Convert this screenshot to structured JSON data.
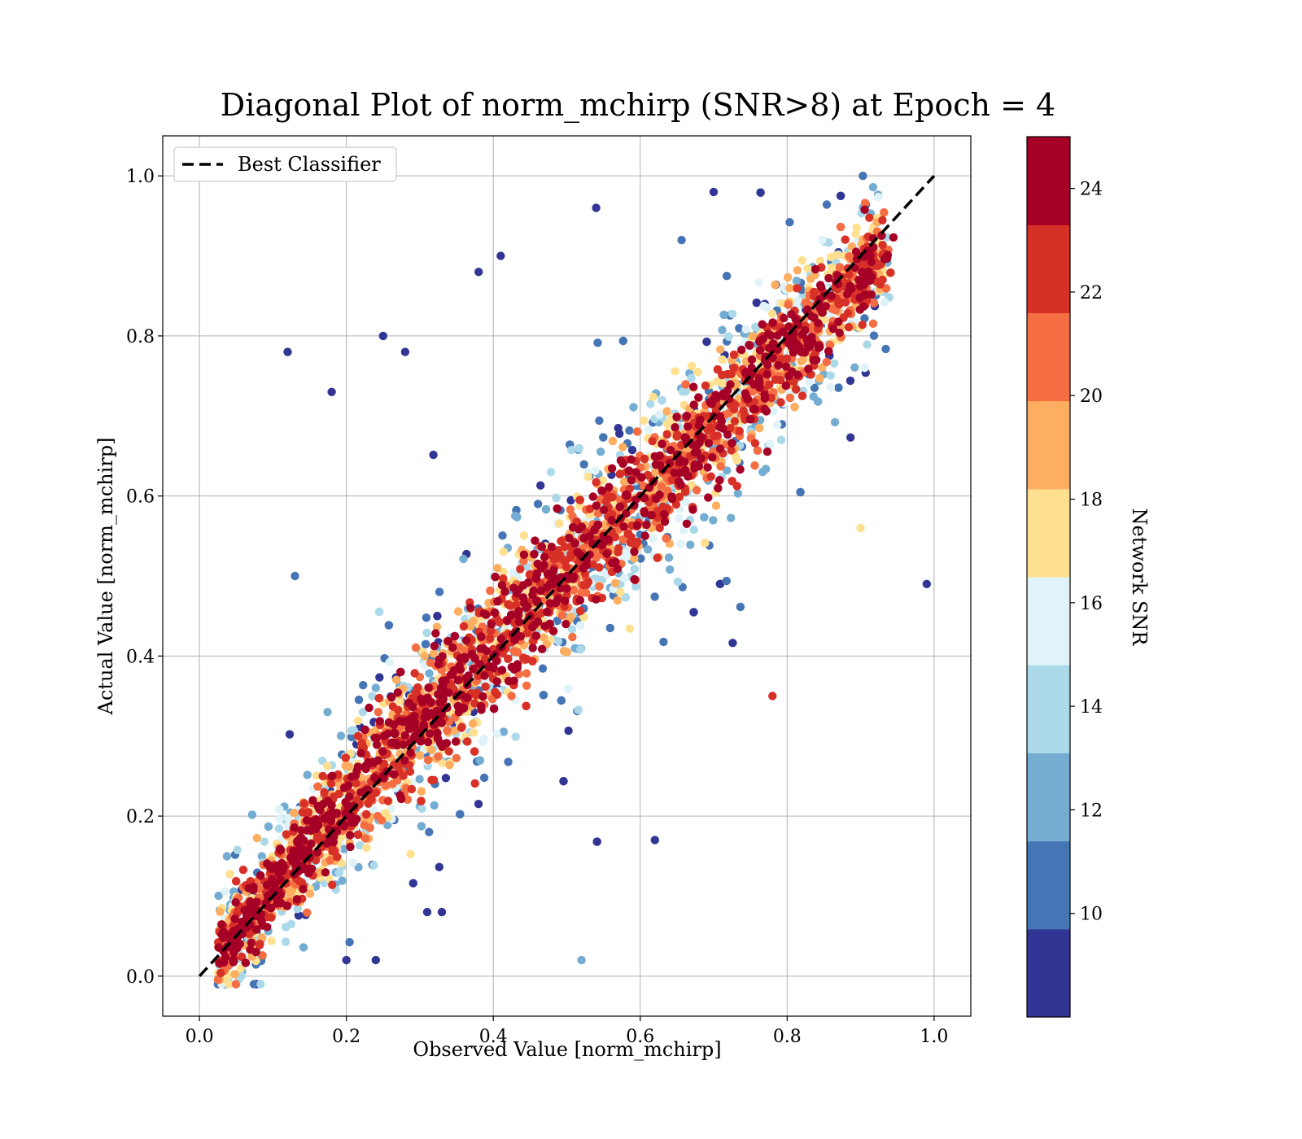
{
  "chart_data": {
    "type": "scatter",
    "title": "Diagonal Plot of norm_mchirp (SNR>8) at Epoch = 4",
    "xlabel": "Observed Value [norm_mchirp]",
    "ylabel": "Actual Value [norm_mchirp]",
    "xlim": [
      -0.05,
      1.05
    ],
    "ylim": [
      -0.05,
      1.05
    ],
    "x_ticks": [
      "0.0",
      "0.2",
      "0.4",
      "0.6",
      "0.8",
      "1.0"
    ],
    "y_ticks": [
      "0.0",
      "0.2",
      "0.4",
      "0.6",
      "0.8",
      "1.0"
    ],
    "grid": true,
    "legend": {
      "placement": "top-left",
      "entries": [
        {
          "label": "Best Classifier",
          "style": "dashed",
          "color": "#000000"
        }
      ]
    },
    "reference_line": {
      "label": "Best Classifier",
      "x": [
        0.0,
        1.0
      ],
      "y": [
        0.0,
        1.0
      ]
    },
    "colorbar": {
      "label": "Network SNR",
      "range": [
        8,
        25
      ],
      "ticks": [
        "10",
        "12",
        "14",
        "16",
        "18",
        "20",
        "22",
        "24"
      ],
      "colors": [
        "#313695",
        "#4575b4",
        "#74add1",
        "#abd9e9",
        "#e0f3f8",
        "#fee090",
        "#fdae61",
        "#f46d43",
        "#d73027",
        "#a50026"
      ]
    },
    "series": [
      {
        "description": "dense band of points along the diagonal, color = Network SNR",
        "points_snr_high": [
          [
            0.05,
            0.05,
            24
          ],
          [
            0.1,
            0.1,
            24
          ],
          [
            0.15,
            0.15,
            24
          ],
          [
            0.2,
            0.2,
            24
          ],
          [
            0.25,
            0.25,
            24
          ],
          [
            0.3,
            0.3,
            24
          ],
          [
            0.35,
            0.35,
            24
          ],
          [
            0.4,
            0.4,
            24
          ],
          [
            0.45,
            0.45,
            24
          ],
          [
            0.5,
            0.5,
            24
          ],
          [
            0.55,
            0.55,
            24
          ],
          [
            0.6,
            0.6,
            24
          ],
          [
            0.65,
            0.65,
            24
          ],
          [
            0.7,
            0.7,
            24
          ],
          [
            0.75,
            0.75,
            24
          ],
          [
            0.8,
            0.8,
            24
          ],
          [
            0.85,
            0.85,
            24
          ],
          [
            0.9,
            0.9,
            24
          ]
        ],
        "outliers_low_snr": [
          [
            0.12,
            0.78,
            9
          ],
          [
            0.18,
            0.73,
            9
          ],
          [
            0.25,
            0.8,
            9
          ],
          [
            0.28,
            0.78,
            9
          ],
          [
            0.38,
            0.88,
            9
          ],
          [
            0.41,
            0.9,
            9
          ],
          [
            0.54,
            0.96,
            9
          ],
          [
            0.7,
            0.98,
            9
          ],
          [
            0.13,
            0.5,
            11
          ],
          [
            0.52,
            0.02,
            13
          ],
          [
            0.62,
            0.17,
            9
          ],
          [
            0.31,
            0.08,
            9
          ],
          [
            0.33,
            0.08,
            9
          ],
          [
            0.2,
            0.02,
            9
          ],
          [
            0.24,
            0.02,
            9
          ],
          [
            0.78,
            0.35,
            23
          ],
          [
            0.99,
            0.49,
            9
          ],
          [
            0.9,
            0.56,
            17
          ]
        ]
      }
    ]
  }
}
